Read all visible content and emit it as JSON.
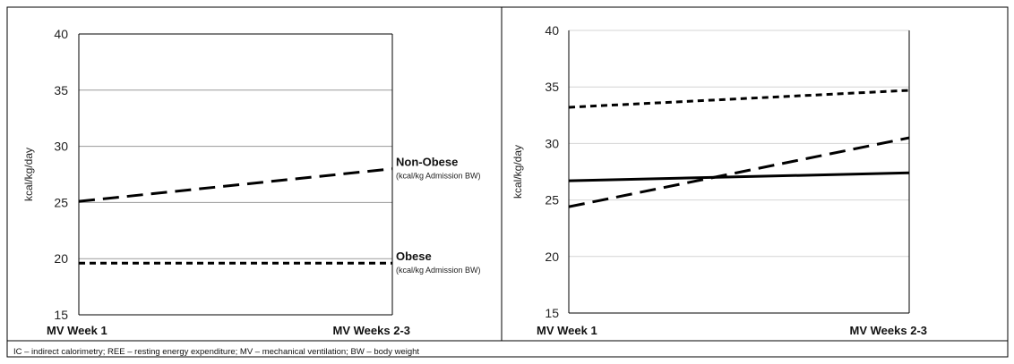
{
  "footnote": "IC – indirect calorimetry; REE – resting energy expenditure; MV – mechanical ventilation;  BW – body weight",
  "chart_data": [
    {
      "type": "line",
      "title": "",
      "xlabel": "",
      "ylabel": "kcal/kg/day",
      "categories": [
        "MV Week 1",
        "MV Weeks 2-3"
      ],
      "ylim": [
        15,
        40
      ],
      "yticks": [
        15,
        20,
        25,
        30,
        35,
        40
      ],
      "grid": true,
      "series": [
        {
          "name": "Non-Obese",
          "subtitle": "(kcal/kg Admission BW)",
          "values": [
            25.1,
            28.0
          ],
          "style": "long-dash",
          "color": "#000000"
        },
        {
          "name": "Obese",
          "subtitle": "(kcal/kg Admission BW)",
          "values": [
            19.6,
            19.6
          ],
          "style": "short-dash",
          "color": "#000000"
        }
      ]
    },
    {
      "type": "line",
      "title": "",
      "xlabel": "",
      "ylabel": "kcal/kg/day",
      "categories": [
        "MV Week 1",
        "MV Weeks 2-3"
      ],
      "ylim": [
        15,
        40
      ],
      "yticks": [
        15,
        20,
        25,
        30,
        35,
        40
      ],
      "grid": true,
      "series": [
        {
          "values": [
            33.2,
            34.7
          ],
          "style": "short-dash",
          "color": "#000000"
        },
        {
          "values": [
            24.4,
            30.5
          ],
          "style": "long-dash",
          "color": "#000000"
        },
        {
          "values": [
            26.7,
            27.4
          ],
          "style": "solid",
          "color": "#000000"
        }
      ]
    }
  ]
}
